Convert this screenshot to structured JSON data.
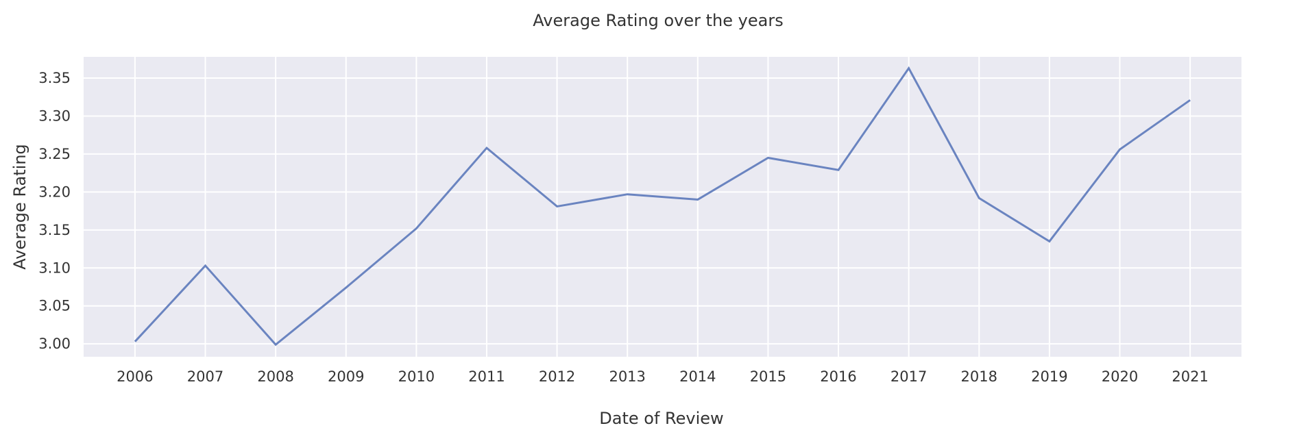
{
  "chart_data": {
    "type": "line",
    "title": "Average Rating over the years",
    "xlabel": "Date of Review",
    "ylabel": "Average Rating",
    "x": [
      2006,
      2007,
      2008,
      2009,
      2010,
      2011,
      2012,
      2013,
      2014,
      2015,
      2016,
      2017,
      2018,
      2019,
      2020,
      2021
    ],
    "x_tick_labels": [
      "2006",
      "2007",
      "2008",
      "2009",
      "2010",
      "2011",
      "2012",
      "2013",
      "2014",
      "2015",
      "2016",
      "2017",
      "2018",
      "2019",
      "2020",
      "2021"
    ],
    "series": [
      {
        "values": [
          3.003,
          3.103,
          2.999,
          3.074,
          3.152,
          3.258,
          3.181,
          3.197,
          3.19,
          3.245,
          3.229,
          3.363,
          3.192,
          3.135,
          3.256,
          3.321
        ]
      }
    ],
    "y_ticks": [
      3.0,
      3.05,
      3.1,
      3.15,
      3.2,
      3.25,
      3.3,
      3.35
    ],
    "y_tick_labels": [
      "3.00",
      "3.05",
      "3.10",
      "3.15",
      "3.20",
      "3.25",
      "3.30",
      "3.35"
    ],
    "xlim": [
      2005.27,
      2021.73
    ],
    "ylim": [
      2.983,
      3.378
    ],
    "grid": true,
    "legend": "none",
    "colors": {
      "plot_background": "#EAEAF2",
      "grid": "#FFFFFF",
      "line": "#6A84C0",
      "text": "#333333"
    }
  }
}
